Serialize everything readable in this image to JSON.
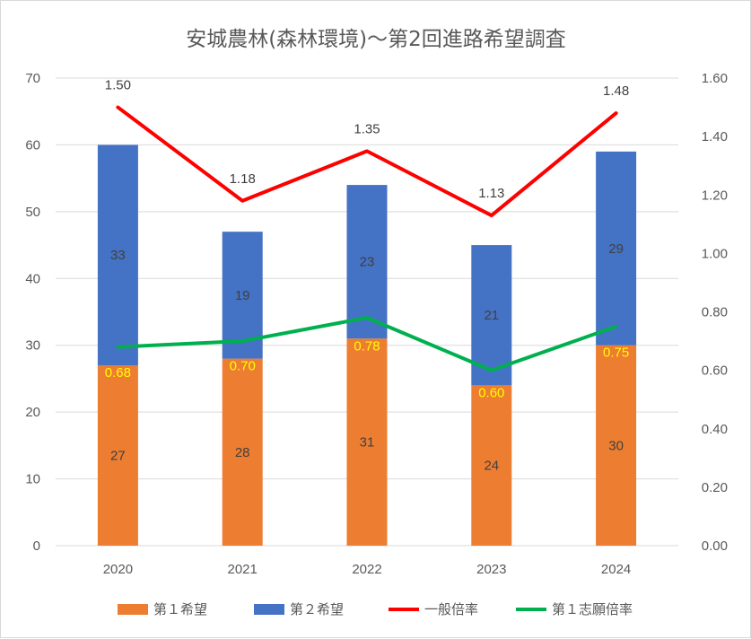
{
  "chart_data": {
    "type": "bar",
    "stacked": true,
    "title": "安城農林(森林環境)～第2回進路希望調査",
    "categories": [
      "2020",
      "2021",
      "2022",
      "2023",
      "2024"
    ],
    "series": [
      {
        "name": "第１希望",
        "kind": "bar",
        "axis": "left",
        "color": "#ed7d31",
        "values": [
          27,
          28,
          31,
          24,
          30
        ]
      },
      {
        "name": "第２希望",
        "kind": "bar",
        "axis": "left",
        "color": "#4472c4",
        "values": [
          33,
          19,
          23,
          21,
          29
        ]
      },
      {
        "name": "一般倍率",
        "kind": "line",
        "axis": "right",
        "color": "#ff0000",
        "values": [
          1.5,
          1.18,
          1.35,
          1.13,
          1.48
        ],
        "labels": [
          "1.50",
          "1.18",
          "1.35",
          "1.13",
          "1.48"
        ]
      },
      {
        "name": "第１志願倍率",
        "kind": "line",
        "axis": "right",
        "color": "#00b050",
        "values": [
          0.68,
          0.7,
          0.78,
          0.6,
          0.75
        ],
        "labels": [
          "0.68",
          "0.70",
          "0.78",
          "0.60",
          "0.75"
        ]
      }
    ],
    "y_left": {
      "min": 0,
      "max": 70,
      "step": 10,
      "ticks": [
        "0",
        "10",
        "20",
        "30",
        "40",
        "50",
        "60",
        "70"
      ]
    },
    "y_right": {
      "min": 0,
      "max": 1.6,
      "step": 0.2,
      "ticks": [
        "0.00",
        "0.20",
        "0.40",
        "0.60",
        "0.80",
        "1.00",
        "1.20",
        "1.40",
        "1.60"
      ]
    },
    "grid": true,
    "legend_position": "bottom"
  }
}
